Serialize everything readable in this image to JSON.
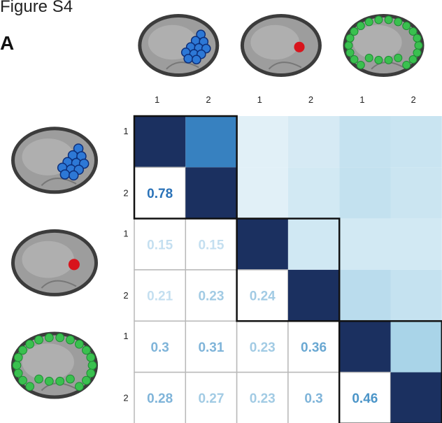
{
  "figure_label": "Figure S4",
  "panel_label": "A",
  "icons": {
    "row": [
      "embryo-blue-cells-icon",
      "embryo-red-dot-icon",
      "embryo-green-ring-icon"
    ],
    "column": [
      "embryo-blue-cells-icon",
      "embryo-red-dot-icon",
      "embryo-green-ring-icon"
    ]
  },
  "colors": {
    "blue_cells": "#1f5fb8",
    "red_dot": "#d8141c",
    "green_ring": "#33b24a",
    "diagonal": "#1b3060",
    "grid_line": "#b9b9b9",
    "group_border": "#111111"
  },
  "chart_data": {
    "type": "heatmap",
    "title": "",
    "column_labels": [
      "1",
      "2",
      "1",
      "2",
      "1",
      "2"
    ],
    "row_labels": [
      "1",
      "2",
      "1",
      "2",
      "1",
      "2"
    ],
    "groups": [
      {
        "icon": "embryo-blue-cells-icon",
        "indices": [
          0,
          1
        ]
      },
      {
        "icon": "embryo-red-dot-icon",
        "indices": [
          2,
          3
        ]
      },
      {
        "icon": "embryo-green-ring-icon",
        "indices": [
          4,
          5
        ]
      }
    ],
    "values": [
      [
        1.0,
        0.78,
        0.15,
        0.21,
        0.3,
        0.28
      ],
      [
        0.78,
        1.0,
        0.15,
        0.23,
        0.31,
        0.27
      ],
      [
        0.15,
        0.15,
        1.0,
        0.24,
        0.23,
        0.23
      ],
      [
        0.21,
        0.23,
        0.24,
        1.0,
        0.36,
        0.3
      ],
      [
        0.3,
        0.31,
        0.23,
        0.36,
        1.0,
        0.46
      ],
      [
        0.28,
        0.27,
        0.23,
        0.3,
        0.46,
        1.0
      ]
    ],
    "labels_lower_triangle": [
      {
        "row": 1,
        "col": 0,
        "text": "0.78"
      },
      {
        "row": 2,
        "col": 0,
        "text": "0.15"
      },
      {
        "row": 2,
        "col": 1,
        "text": "0.15"
      },
      {
        "row": 3,
        "col": 0,
        "text": "0.21"
      },
      {
        "row": 3,
        "col": 1,
        "text": "0.23"
      },
      {
        "row": 3,
        "col": 2,
        "text": "0.24"
      },
      {
        "row": 4,
        "col": 0,
        "text": "0.3"
      },
      {
        "row": 4,
        "col": 1,
        "text": "0.31"
      },
      {
        "row": 4,
        "col": 2,
        "text": "0.23"
      },
      {
        "row": 4,
        "col": 3,
        "text": "0.36"
      },
      {
        "row": 5,
        "col": 0,
        "text": "0.28"
      },
      {
        "row": 5,
        "col": 1,
        "text": "0.27"
      },
      {
        "row": 5,
        "col": 2,
        "text": "0.23"
      },
      {
        "row": 5,
        "col": 3,
        "text": "0.3"
      },
      {
        "row": 5,
        "col": 4,
        "text": "0.46"
      }
    ],
    "color_scale": {
      "low": "#ffffff",
      "mid": "#a9d4e8",
      "high": "#1b3060",
      "range": [
        0,
        1
      ]
    },
    "upper_triangle": "color-filled",
    "lower_triangle": "numeric-labels",
    "grid": true,
    "legend": "none"
  }
}
